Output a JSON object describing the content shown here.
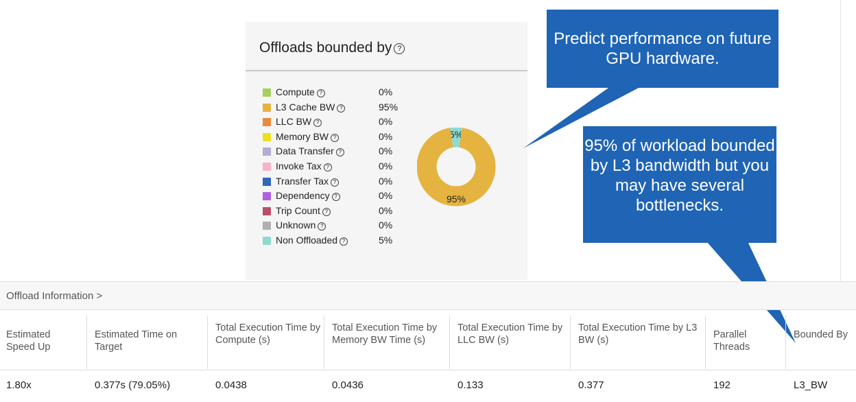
{
  "panel": {
    "title": "Offloads bounded by",
    "legend": [
      {
        "label": "Compute",
        "value": "0%",
        "color": "#a6ce5c"
      },
      {
        "label": "L3 Cache BW",
        "value": "95%",
        "color": "#e5b33f"
      },
      {
        "label": "LLC BW",
        "value": "0%",
        "color": "#e9893b"
      },
      {
        "label": "Memory BW",
        "value": "0%",
        "color": "#ede01d"
      },
      {
        "label": "Data Transfer",
        "value": "0%",
        "color": "#b3acd6"
      },
      {
        "label": "Invoke Tax",
        "value": "0%",
        "color": "#f5b4cc"
      },
      {
        "label": "Transfer Tax",
        "value": "0%",
        "color": "#2e68ba"
      },
      {
        "label": "Dependency",
        "value": "0%",
        "color": "#b160de"
      },
      {
        "label": "Trip Count",
        "value": "0%",
        "color": "#b9506a"
      },
      {
        "label": "Unknown",
        "value": "0%",
        "color": "#b0b0b0"
      },
      {
        "label": "Non Offloaded",
        "value": "5%",
        "color": "#8fdad0"
      }
    ],
    "donut": {
      "slices": [
        {
          "name": "L3 Cache BW",
          "value": 95,
          "label": "95%",
          "color": "#e5b33f"
        },
        {
          "name": "Non Offloaded",
          "value": 5,
          "label": "5%",
          "color": "#8fdad0"
        }
      ]
    }
  },
  "callouts": {
    "top": "Predict performance on future GPU hardware.",
    "side": "95% of workload bounded by L3 bandwidth but you may have several bottlenecks."
  },
  "table": {
    "title": "Offload Information  >",
    "columns": [
      "Estimated Speed Up",
      "Estimated Time on Target",
      "Total Execution Time by Compute (s)",
      "Total Execution Time by Memory BW Time (s)",
      "Total Execution Time by LLC BW (s)",
      "Total Execution Time by L3 BW (s)",
      "Parallel Threads",
      "Bounded By"
    ],
    "row": [
      "1.80x",
      "0.377s (79.05%)",
      "0.0438",
      "0.0436",
      "0.133",
      "0.377",
      "192",
      "L3_BW"
    ]
  }
}
